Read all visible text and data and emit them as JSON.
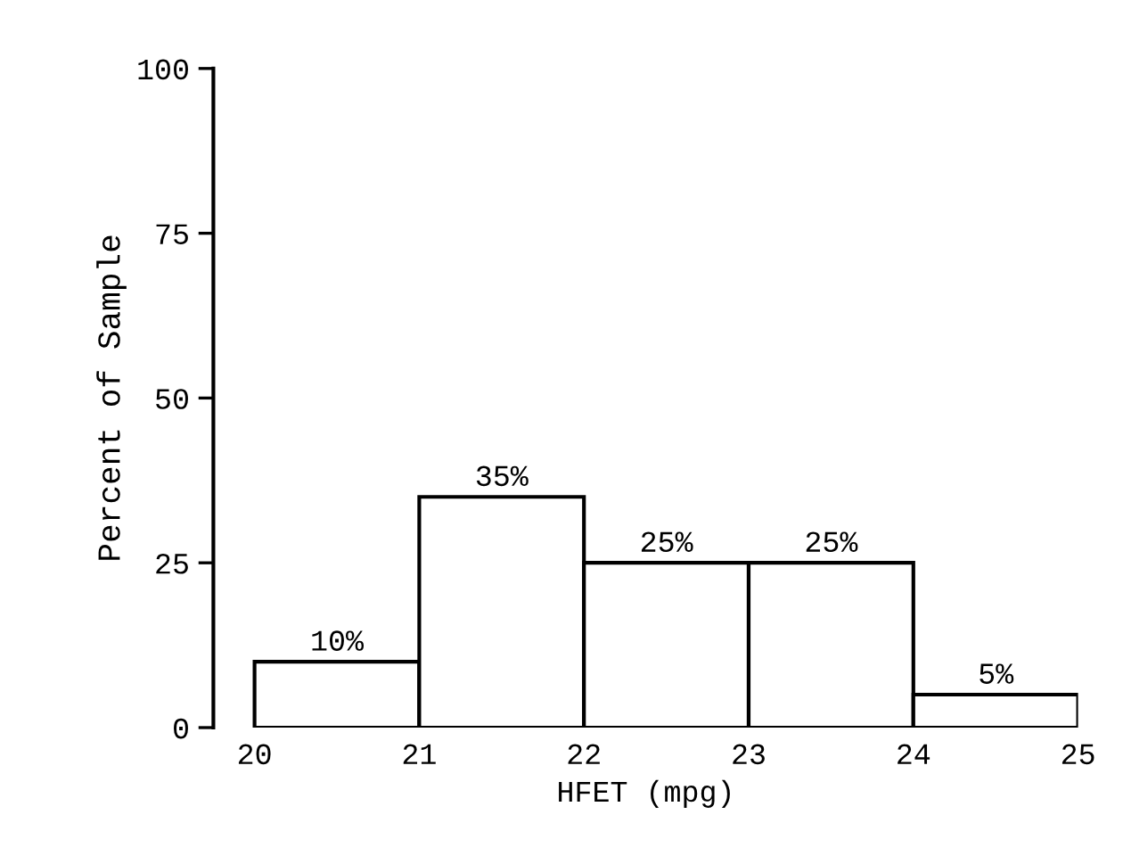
{
  "chart_data": {
    "type": "histogram",
    "xlabel": "HFET (mpg)",
    "ylabel": "Percent of Sample",
    "bins": [
      20,
      21,
      22,
      23,
      24,
      25
    ],
    "values": [
      10,
      35,
      25,
      25,
      5
    ],
    "value_labels": [
      "10%",
      "35%",
      "25%",
      "25%",
      "5%"
    ],
    "color": "#ffffff",
    "xlim": [
      19.75,
      25
    ],
    "xticks": [
      20,
      21,
      22,
      23,
      24,
      25
    ],
    "ylim": [
      0,
      100
    ],
    "yticks": [
      0,
      25,
      50,
      75,
      100
    ],
    "grid": false,
    "legend": false
  }
}
